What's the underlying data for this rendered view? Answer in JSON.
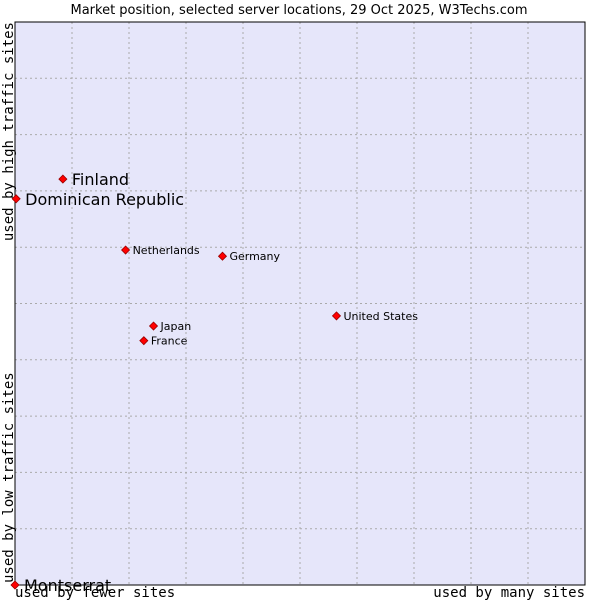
{
  "chart_data": {
    "type": "scatter",
    "title": "Market position, selected server locations, 29 Oct 2025, W3Techs.com",
    "xlabel_low": "used by fewer sites",
    "xlabel_high": "used by many sites",
    "ylabel_low": "used by low traffic sites",
    "ylabel_high": "used by high traffic sites",
    "xlim": [
      0,
      10
    ],
    "ylim": [
      0,
      10
    ],
    "grid": true,
    "colors": {
      "plot_bg": "#e6e6fa",
      "point": "#ff0000",
      "point_stroke": "#990000",
      "grid": "#aaaaaa"
    },
    "points": [
      {
        "name": "Finland",
        "x": 0.84,
        "y": 7.21,
        "size": "large"
      },
      {
        "name": "Dominican Republic",
        "x": 0.02,
        "y": 6.86,
        "size": "large"
      },
      {
        "name": "Netherlands",
        "x": 1.94,
        "y": 5.95,
        "size": "small"
      },
      {
        "name": "Germany",
        "x": 3.64,
        "y": 5.84,
        "size": "small"
      },
      {
        "name": "United States",
        "x": 5.64,
        "y": 4.78,
        "size": "small"
      },
      {
        "name": "Japan",
        "x": 2.43,
        "y": 4.6,
        "size": "small"
      },
      {
        "name": "France",
        "x": 2.26,
        "y": 4.34,
        "size": "small"
      },
      {
        "name": "Montserrat",
        "x": 0.0,
        "y": 0.0,
        "size": "large"
      }
    ]
  }
}
